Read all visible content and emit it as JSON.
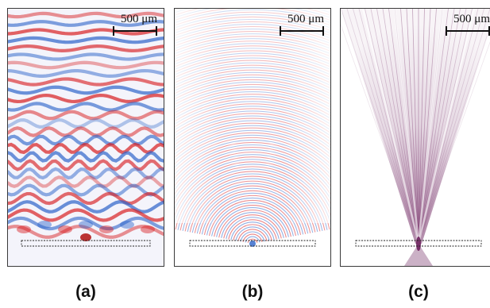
{
  "panels": [
    {
      "id": "a",
      "caption": "(a)",
      "scalebar": "500 μm",
      "colormap": "diverging red-blue",
      "color_positive": "#d7191c",
      "color_negative": "#2c63c9"
    },
    {
      "id": "b",
      "caption": "(b)",
      "scalebar": "500 μm",
      "colormap": "diverging red-blue",
      "color_positive": "#d7191c",
      "color_negative": "#2c63c9"
    },
    {
      "id": "c",
      "caption": "(c)",
      "scalebar": "500 μm",
      "colormap": "intensity purple",
      "color_positive": "#6b1f5c"
    }
  ]
}
